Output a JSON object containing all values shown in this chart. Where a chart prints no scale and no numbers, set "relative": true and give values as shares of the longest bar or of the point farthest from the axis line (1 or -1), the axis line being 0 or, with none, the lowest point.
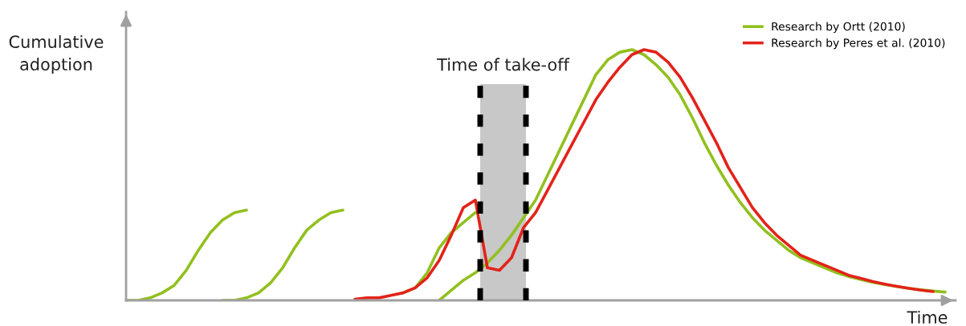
{
  "chart_data": {
    "type": "line",
    "relative": true,
    "xlabel": "Time",
    "ylabel": "Cumulative\nadoption",
    "categories": [
      null,
      null,
      null,
      null,
      null,
      null,
      null,
      null,
      null,
      null,
      null,
      null,
      null,
      null,
      null,
      null,
      null,
      null,
      null,
      null,
      null,
      null,
      null,
      null,
      null,
      null,
      null,
      null,
      null,
      null,
      null,
      null,
      null,
      null,
      null,
      null,
      null,
      null,
      null,
      null,
      null,
      null,
      null,
      null,
      null,
      null,
      null,
      null,
      null,
      null,
      null,
      null,
      null,
      null,
      null,
      null,
      null,
      null,
      null,
      null,
      null,
      null,
      null,
      null,
      null,
      null,
      null,
      null,
      null
    ],
    "series": [
      {
        "color": "#92c01f",
        "values": [
          0,
          0,
          0.01,
          0.03,
          0.06,
          0.12,
          0.2,
          0.27,
          0.32,
          0.35,
          0.36,
          null,
          null,
          null,
          null,
          null,
          null,
          null,
          null,
          null,
          null,
          null,
          null,
          null,
          null,
          null,
          null,
          null,
          null,
          null,
          null,
          null,
          null,
          null,
          null,
          null,
          null,
          null,
          null,
          null,
          null,
          null,
          null,
          null,
          null,
          null,
          null,
          null,
          null,
          null,
          null,
          null,
          null,
          null,
          null,
          null,
          null,
          null,
          null,
          null,
          null,
          null,
          null,
          null,
          null,
          null,
          null,
          null,
          null
        ]
      },
      {
        "color": "#92c01f",
        "values": [
          null,
          null,
          null,
          null,
          null,
          null,
          null,
          null,
          0,
          0,
          0.01,
          0.03,
          0.07,
          0.13,
          0.21,
          0.28,
          0.32,
          0.35,
          0.36,
          null,
          null,
          null,
          null,
          null,
          null,
          null,
          null,
          null,
          null,
          null,
          null,
          null,
          null,
          null,
          null,
          null,
          null,
          null,
          null,
          null,
          null,
          null,
          null,
          null,
          null,
          null,
          null,
          null,
          null,
          null,
          null,
          null,
          null,
          null,
          null,
          null,
          null,
          null,
          null,
          null,
          null,
          null,
          null,
          null,
          null,
          null,
          null,
          null,
          null
        ]
      },
      {
        "color": "#92c01f",
        "values": [
          null,
          null,
          null,
          null,
          null,
          null,
          null,
          null,
          null,
          null,
          null,
          null,
          null,
          null,
          null,
          null,
          null,
          null,
          null,
          null,
          null,
          null,
          null,
          0.03,
          0.05,
          0.11,
          0.21,
          0.27,
          0.31,
          0.35,
          null,
          null,
          null,
          null,
          null,
          null,
          null,
          null,
          null,
          null,
          null,
          null,
          null,
          null,
          null,
          null,
          null,
          null,
          null,
          null,
          null,
          null,
          null,
          null,
          null,
          null,
          null,
          null,
          null,
          null,
          null,
          null,
          null,
          null,
          null,
          null,
          null,
          null,
          null
        ]
      },
      {
        "name": "Research by Ortt (2010)",
        "color": "#92c01f",
        "values": [
          null,
          null,
          null,
          null,
          null,
          null,
          null,
          null,
          null,
          null,
          null,
          null,
          null,
          null,
          null,
          null,
          null,
          null,
          null,
          null,
          null,
          null,
          null,
          null,
          null,
          null,
          0,
          0.04,
          0.08,
          0.11,
          0.15,
          0.2,
          0.26,
          0.33,
          0.4,
          0.5,
          0.6,
          0.7,
          0.8,
          0.9,
          0.96,
          0.99,
          1.0,
          0.98,
          0.94,
          0.89,
          0.82,
          0.73,
          0.63,
          0.54,
          0.46,
          0.39,
          0.33,
          0.28,
          0.24,
          0.2,
          0.17,
          0.15,
          0.13,
          0.11,
          0.095,
          0.083,
          0.072,
          0.063,
          0.055,
          0.048,
          0.042,
          0.037,
          0.033
        ]
      },
      {
        "name": "Research by Peres et al. (2010)",
        "color": "#e2231a",
        "values": [
          null,
          null,
          null,
          null,
          null,
          null,
          null,
          null,
          null,
          null,
          null,
          null,
          null,
          null,
          null,
          null,
          null,
          null,
          null,
          0.005,
          0.01,
          0.01,
          0.02,
          0.03,
          0.05,
          0.09,
          0.16,
          0.26,
          0.37,
          0.4,
          0.13,
          0.12,
          0.17,
          0.29,
          0.35,
          0.44,
          0.53,
          0.62,
          0.71,
          0.8,
          0.87,
          0.93,
          0.98,
          1.0,
          0.99,
          0.95,
          0.89,
          0.81,
          0.72,
          0.63,
          0.53,
          0.45,
          0.37,
          0.31,
          0.26,
          0.22,
          0.18,
          0.16,
          0.14,
          0.12,
          0.1,
          0.088,
          0.075,
          0.065,
          0.056,
          0.048,
          0.041,
          0.035,
          null
        ]
      }
    ],
    "annotations": [
      "Time of take-off"
    ],
    "legend": "top right"
  }
}
